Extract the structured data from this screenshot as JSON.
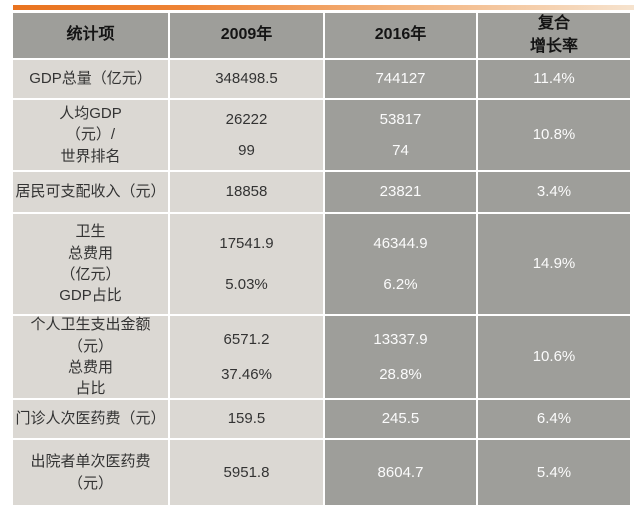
{
  "accent_bar": {
    "gradient_start": "#e9731f",
    "gradient_end": "#f6e3ce"
  },
  "colors": {
    "header_bg": "#9e9e9a",
    "dark_cell_bg": "#9e9e9a",
    "light_cell_bg": "#dbd8d3",
    "header_text": "#141414",
    "light_cell_text": "#333333",
    "dark_cell_text": "#fbfbfb"
  },
  "table": {
    "headers": {
      "stat": "统计项",
      "y2009": "2009年",
      "y2016": "2016年",
      "growth_line1": "复合",
      "growth_line2": "增长率"
    },
    "rows": [
      {
        "label": [
          "GDP总量（亿元）"
        ],
        "y2009": [
          "348498.5"
        ],
        "y2016": [
          "744127"
        ],
        "growth": "11.4%"
      },
      {
        "label": [
          "人均GDP",
          "（元）/",
          "世界排名"
        ],
        "y2009": [
          "26222",
          "99"
        ],
        "y2016": [
          "53817",
          "74"
        ],
        "growth": "10.8%"
      },
      {
        "label": [
          "居民可支配收入（元）"
        ],
        "y2009": [
          "18858"
        ],
        "y2016": [
          "23821"
        ],
        "growth": "3.4%"
      },
      {
        "label": [
          "卫生",
          "总费用",
          "（亿元）",
          "GDP占比"
        ],
        "y2009": [
          "17541.9",
          "5.03%"
        ],
        "y2016": [
          "46344.9",
          "6.2%"
        ],
        "growth": "14.9%"
      },
      {
        "label": [
          "个人卫生支出金额",
          "（元）",
          "总费用",
          "占比"
        ],
        "y2009": [
          "6571.2",
          "37.46%"
        ],
        "y2016": [
          "13337.9",
          "28.8%"
        ],
        "growth": "10.6%"
      },
      {
        "label": [
          "门诊人次医药费（元）"
        ],
        "y2009": [
          "159.5"
        ],
        "y2016": [
          "245.5"
        ],
        "growth": "6.4%"
      },
      {
        "label": [
          "出院者单次医药费",
          "（元）"
        ],
        "y2009": [
          "5951.8"
        ],
        "y2016": [
          "8604.7"
        ],
        "growth": "5.4%"
      }
    ]
  },
  "chart_data": {
    "type": "table",
    "title": "",
    "columns": [
      "统计项",
      "2009年",
      "2016年",
      "复合增长率"
    ],
    "rows": [
      [
        "GDP总量（亿元）",
        "348498.5",
        "744127",
        "11.4%"
      ],
      [
        "人均GDP（元）/ 世界排名",
        "26222 / 99",
        "53817 / 74",
        "10.8%"
      ],
      [
        "居民可支配收入（元）",
        "18858",
        "23821",
        "3.4%"
      ],
      [
        "卫生总费用（亿元）GDP占比",
        "17541.9 / 5.03%",
        "46344.9 / 6.2%",
        "14.9%"
      ],
      [
        "个人卫生支出金额（元）总费用占比",
        "6571.2 / 37.46%",
        "13337.9 / 28.8%",
        "10.6%"
      ],
      [
        "门诊人次医药费（元）",
        "159.5",
        "245.5",
        "6.4%"
      ],
      [
        "出院者单次医药费（元）",
        "5951.8",
        "8604.7",
        "5.4%"
      ]
    ]
  }
}
